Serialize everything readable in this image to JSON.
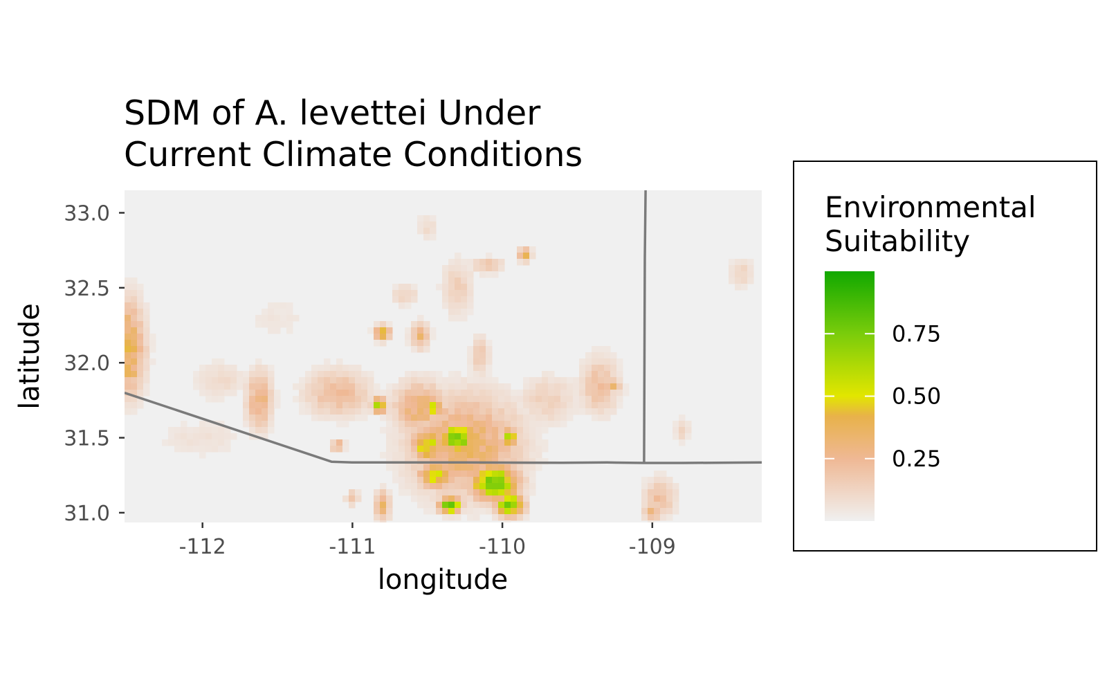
{
  "chart_data": {
    "type": "heatmap",
    "title": [
      "SDM of A. levettei Under",
      "Current Climate Conditions"
    ],
    "xlabel": "longitude",
    "ylabel": "latitude",
    "xlim": [
      -112.52,
      -108.27
    ],
    "ylim": [
      30.935,
      33.15
    ],
    "x_ticks": [
      -112,
      -111,
      -110,
      -109
    ],
    "x_tick_labels": [
      "-112",
      "-111",
      "-110",
      "-109"
    ],
    "y_ticks": [
      31.0,
      31.5,
      32.0,
      32.5,
      33.0
    ],
    "y_tick_labels": [
      "31.0",
      "31.5",
      "32.0",
      "32.5",
      "33.0"
    ],
    "grid": false,
    "legend": {
      "title": [
        "Environmental",
        "Suitability"
      ],
      "placement": "right",
      "breaks": [
        0.25,
        0.5,
        0.75
      ],
      "break_labels": [
        "0.25",
        "0.50",
        "0.75"
      ],
      "range": [
        0,
        1
      ],
      "colors": [
        {
          "stop": 0.0,
          "color": "#f0f0f0"
        },
        {
          "stop": 0.25,
          "color": "#efb894"
        },
        {
          "stop": 0.42,
          "color": "#e8b24a"
        },
        {
          "stop": 0.5,
          "color": "#e2e600"
        },
        {
          "stop": 0.75,
          "color": "#7acc0b"
        },
        {
          "stop": 1.0,
          "color": "#11a800"
        }
      ]
    },
    "boundary_color": "#7a7a7a",
    "boundaries": [
      {
        "name": "us-mexico-border",
        "points": [
          [
            -112.52,
            31.8
          ],
          [
            -111.14,
            31.34
          ],
          [
            -111.0,
            31.335
          ],
          [
            -110.25,
            31.335
          ],
          [
            -109.6,
            31.333
          ],
          [
            -109.3,
            31.335
          ],
          [
            -109.05,
            31.332
          ],
          [
            -108.8,
            31.332
          ],
          [
            -108.27,
            31.335
          ]
        ]
      },
      {
        "name": "arizona-new-mexico-border",
        "points": [
          [
            -109.045,
            33.15
          ],
          [
            -109.05,
            32.7
          ],
          [
            -109.055,
            31.332
          ]
        ]
      }
    ],
    "suitability_hotspots": [
      {
        "lon": -112.5,
        "lat": 32.1,
        "value": 0.42,
        "rx": 0.13,
        "ry": 0.35
      },
      {
        "lon": -112.48,
        "lat": 31.95,
        "value": 0.45,
        "rx": 0.05,
        "ry": 0.1
      },
      {
        "lon": -111.62,
        "lat": 31.75,
        "value": 0.3,
        "rx": 0.1,
        "ry": 0.22
      },
      {
        "lon": -111.88,
        "lat": 31.88,
        "value": 0.1,
        "rx": 0.2,
        "ry": 0.15
      },
      {
        "lon": -111.1,
        "lat": 31.8,
        "value": 0.24,
        "rx": 0.25,
        "ry": 0.18
      },
      {
        "lon": -110.25,
        "lat": 31.45,
        "value": 0.36,
        "rx": 0.42,
        "ry": 0.38
      },
      {
        "lon": -110.55,
        "lat": 31.7,
        "value": 0.33,
        "rx": 0.2,
        "ry": 0.2
      },
      {
        "lon": -110.3,
        "lat": 31.5,
        "value": 0.85,
        "rx": 0.12,
        "ry": 0.1
      },
      {
        "lon": -110.5,
        "lat": 31.45,
        "value": 0.55,
        "rx": 0.12,
        "ry": 0.12
      },
      {
        "lon": -110.45,
        "lat": 31.7,
        "value": 0.55,
        "rx": 0.05,
        "ry": 0.08
      },
      {
        "lon": -110.82,
        "lat": 31.72,
        "value": 0.62,
        "rx": 0.06,
        "ry": 0.06
      },
      {
        "lon": -110.05,
        "lat": 31.2,
        "value": 0.78,
        "rx": 0.18,
        "ry": 0.14
      },
      {
        "lon": -110.35,
        "lat": 31.05,
        "value": 0.85,
        "rx": 0.08,
        "ry": 0.06
      },
      {
        "lon": -109.95,
        "lat": 31.05,
        "value": 0.82,
        "rx": 0.1,
        "ry": 0.08
      },
      {
        "lon": -110.45,
        "lat": 31.25,
        "value": 0.55,
        "rx": 0.12,
        "ry": 0.1
      },
      {
        "lon": -109.95,
        "lat": 31.5,
        "value": 0.6,
        "rx": 0.06,
        "ry": 0.07
      },
      {
        "lon": -110.8,
        "lat": 32.2,
        "value": 0.45,
        "rx": 0.06,
        "ry": 0.06
      },
      {
        "lon": -110.55,
        "lat": 32.18,
        "value": 0.3,
        "rx": 0.07,
        "ry": 0.1
      },
      {
        "lon": -110.65,
        "lat": 32.45,
        "value": 0.14,
        "rx": 0.1,
        "ry": 0.08
      },
      {
        "lon": -110.3,
        "lat": 32.5,
        "value": 0.15,
        "rx": 0.12,
        "ry": 0.22
      },
      {
        "lon": -110.1,
        "lat": 32.65,
        "value": 0.2,
        "rx": 0.12,
        "ry": 0.06
      },
      {
        "lon": -109.85,
        "lat": 32.72,
        "value": 0.38,
        "rx": 0.05,
        "ry": 0.05
      },
      {
        "lon": -110.15,
        "lat": 32.05,
        "value": 0.18,
        "rx": 0.07,
        "ry": 0.15
      },
      {
        "lon": -109.7,
        "lat": 31.75,
        "value": 0.14,
        "rx": 0.22,
        "ry": 0.2
      },
      {
        "lon": -109.35,
        "lat": 31.85,
        "value": 0.22,
        "rx": 0.15,
        "ry": 0.22
      },
      {
        "lon": -109.25,
        "lat": 31.85,
        "value": 0.5,
        "rx": 0.04,
        "ry": 0.04
      },
      {
        "lon": -108.95,
        "lat": 31.1,
        "value": 0.22,
        "rx": 0.12,
        "ry": 0.15
      },
      {
        "lon": -109.0,
        "lat": 31.0,
        "value": 0.35,
        "rx": 0.06,
        "ry": 0.06
      },
      {
        "lon": -108.8,
        "lat": 31.55,
        "value": 0.16,
        "rx": 0.05,
        "ry": 0.08
      },
      {
        "lon": -108.4,
        "lat": 32.6,
        "value": 0.12,
        "rx": 0.1,
        "ry": 0.12
      },
      {
        "lon": -110.8,
        "lat": 31.05,
        "value": 0.32,
        "rx": 0.06,
        "ry": 0.12
      },
      {
        "lon": -111.0,
        "lat": 31.1,
        "value": 0.2,
        "rx": 0.05,
        "ry": 0.06
      },
      {
        "lon": -111.1,
        "lat": 31.45,
        "value": 0.28,
        "rx": 0.05,
        "ry": 0.05
      },
      {
        "lon": -112.0,
        "lat": 31.5,
        "value": 0.07,
        "rx": 0.35,
        "ry": 0.15
      },
      {
        "lon": -111.5,
        "lat": 32.3,
        "value": 0.05,
        "rx": 0.3,
        "ry": 0.2
      },
      {
        "lon": -110.5,
        "lat": 32.9,
        "value": 0.1,
        "rx": 0.08,
        "ry": 0.1
      }
    ]
  }
}
